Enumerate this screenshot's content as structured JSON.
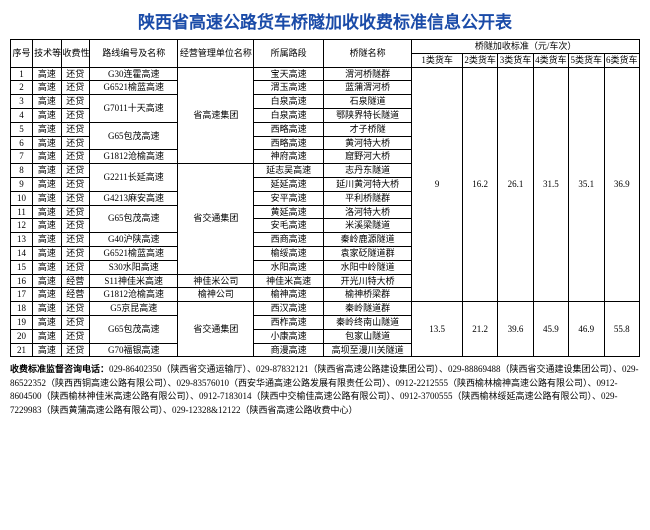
{
  "title": "陕西省高速公路货车桥隧加收收费标准信息公开表",
  "header": {
    "seq": "序号",
    "tech": "技术等级",
    "feeType": "收费性质",
    "route": "路线编号及名称",
    "unit": "经营管理单位名称",
    "segment": "所属路段",
    "bridgeName": "桥隧名称",
    "rateGroup": "桥隧加收标准（元/车次）",
    "r1": "1类货车",
    "r2": "2类货车",
    "r3": "3类货车",
    "r4": "4类货车",
    "r5": "5类货车",
    "r6": "6类货车"
  },
  "costs": {
    "g1": {
      "r1": "9",
      "r2": "16.2",
      "r3": "26.1",
      "r4": "31.5",
      "r5": "35.1",
      "r6": "36.9"
    },
    "g2": {
      "r1": "13.5",
      "r2": "21.2",
      "r3": "39.6",
      "r4": "45.9",
      "r5": "46.9",
      "r6": "55.8"
    }
  },
  "rows": [
    {
      "seq": "1",
      "tech": "高速",
      "fee": "还贷",
      "route": "G30连霍高速",
      "unit": "省高速集团",
      "segment": "宝天高速",
      "name": "渭河桥隧群"
    },
    {
      "seq": "2",
      "tech": "高速",
      "fee": "还贷",
      "route": "G6521榆蓝高速",
      "unit": "",
      "segment": "渭玉高速",
      "name": "蓝蒲渭河桥"
    },
    {
      "seq": "3",
      "tech": "高速",
      "fee": "还贷",
      "route": "G7011十天高速",
      "unit": "",
      "segment": "白泉高速",
      "name": "石泉隧道"
    },
    {
      "seq": "4",
      "tech": "高速",
      "fee": "还贷",
      "route": "",
      "unit": "",
      "segment": "白泉高速",
      "name": "鄂陕界特长隧道"
    },
    {
      "seq": "5",
      "tech": "高速",
      "fee": "还贷",
      "route": "G65包茂高速",
      "unit": "",
      "segment": "西略高速",
      "name": "才子桥隧"
    },
    {
      "seq": "6",
      "tech": "高速",
      "fee": "还贷",
      "route": "",
      "unit": "",
      "segment": "西略高速",
      "name": "黄河特大桥"
    },
    {
      "seq": "7",
      "tech": "高速",
      "fee": "还贷",
      "route": "G1812沧榆高速",
      "unit": "",
      "segment": "神府高速",
      "name": "窟野河大桥"
    },
    {
      "seq": "8",
      "tech": "高速",
      "fee": "还贷",
      "route": "G2211长延高速",
      "unit": "省交通集团",
      "segment": "延志吴高速",
      "name": "志丹东隧道"
    },
    {
      "seq": "9",
      "tech": "高速",
      "fee": "还贷",
      "route": "",
      "unit": "",
      "segment": "延延高速",
      "name": "延川黄河特大桥"
    },
    {
      "seq": "10",
      "tech": "高速",
      "fee": "还贷",
      "route": "G4213麻安高速",
      "unit": "",
      "segment": "安平高速",
      "name": "平利桥隧群"
    },
    {
      "seq": "11",
      "tech": "高速",
      "fee": "还贷",
      "route": "G65包茂高速",
      "unit": "",
      "segment": "黄延高速",
      "name": "洛河特大桥"
    },
    {
      "seq": "12",
      "tech": "高速",
      "fee": "还贷",
      "route": "",
      "unit": "",
      "segment": "安毛高速",
      "name": "米溪梁隧道"
    },
    {
      "seq": "13",
      "tech": "高速",
      "fee": "还贷",
      "route": "G40沪陕高速",
      "unit": "",
      "segment": "西商高速",
      "name": "秦岭鹿源隧道"
    },
    {
      "seq": "14",
      "tech": "高速",
      "fee": "还贷",
      "route": "G6521榆蓝高速",
      "unit": "",
      "segment": "榆绥高速",
      "name": "袁家砭隧道群"
    },
    {
      "seq": "15",
      "tech": "高速",
      "fee": "还贷",
      "route": "S30水阳高速",
      "unit": "",
      "segment": "水阳高速",
      "name": "水阳中岭隧道"
    },
    {
      "seq": "16",
      "tech": "高速",
      "fee": "经营",
      "route": "S11神佳米高速",
      "unit": "神佳米公司",
      "segment": "神佳米高速",
      "name": "开光川特大桥"
    },
    {
      "seq": "17",
      "tech": "高速",
      "fee": "经营",
      "route": "G1812沧榆高速",
      "unit": "榆神公司",
      "segment": "榆神高速",
      "name": "榆神桥梁群"
    },
    {
      "seq": "18",
      "tech": "高速",
      "fee": "还贷",
      "route": "G5京昆高速",
      "unit": "省交通集团",
      "segment": "西汉高速",
      "name": "秦岭隧道群"
    },
    {
      "seq": "19",
      "tech": "高速",
      "fee": "还贷",
      "route": "G65包茂高速",
      "unit": "",
      "segment": "西柞高速",
      "name": "秦岭终南山隧道"
    },
    {
      "seq": "20",
      "tech": "高速",
      "fee": "还贷",
      "route": "",
      "unit": "",
      "segment": "小康高速",
      "name": "包家山隧道"
    },
    {
      "seq": "21",
      "tech": "高速",
      "fee": "还贷",
      "route": "G70福银高速",
      "unit": "",
      "segment": "商漫高速",
      "name": "高坝至漫川关隧道"
    }
  ],
  "footer": {
    "labelBold": "收费标准监督咨询电话：",
    "text": "029-86402350（陕西省交通运输厅）、029-87832121（陕西省高速公路建设集团公司）、029-88869488（陕西省交通建设集团公司）、029-86522352（陕西西铜高速公路有限公司）、029-83576010（西安华通高速公路发展有限责任公司）、0912-2212555（陕西榆林榆神高速公路有限公司）、0912-8604500（陕西榆林神佳米高速公路有限公司）、0912-7183014（陕西中交榆佳高速公路有限公司）、0912-3700555（陕西榆林绥延高速公路有限公司）、029-7229983（陕西黄蒲高速公路有限公司）、029-12328&12122（陕西省高速公路收费中心）"
  }
}
